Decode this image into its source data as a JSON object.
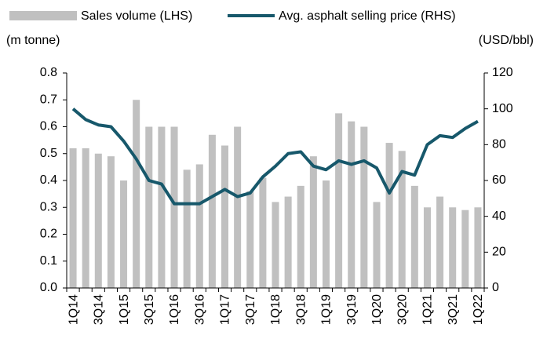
{
  "chart_data": {
    "type": "combo",
    "categories": [
      "1Q14",
      null,
      "3Q14",
      null,
      "1Q15",
      null,
      "3Q15",
      null,
      "1Q16",
      null,
      "3Q16",
      null,
      "1Q17",
      null,
      "3Q17",
      null,
      "1Q18",
      null,
      "3Q18",
      null,
      "1Q19",
      null,
      "3Q19",
      null,
      "1Q20",
      null,
      "3Q20",
      null,
      "1Q21",
      null,
      "3Q21",
      null,
      "1Q22"
    ],
    "series": [
      {
        "name": "Sales volume (LHS)",
        "type": "bar",
        "color": "#c0c0c0",
        "values": [
          0.52,
          0.52,
          0.5,
          0.49,
          0.4,
          0.7,
          0.6,
          0.6,
          0.6,
          0.44,
          0.46,
          0.57,
          0.53,
          0.6,
          0.36,
          0.41,
          0.32,
          0.34,
          0.38,
          0.49,
          0.4,
          0.65,
          0.62,
          0.6,
          0.32,
          0.54,
          0.51,
          0.38,
          0.3,
          0.34,
          0.3,
          0.29,
          0.3
        ]
      },
      {
        "name": "Avg. asphalt selling price (RHS)",
        "type": "line",
        "axis": "y2",
        "color": "#17586b",
        "values": [
          100,
          94,
          91,
          90,
          82,
          72,
          60,
          58,
          47,
          47,
          47,
          51,
          55,
          51,
          53,
          62,
          68,
          75,
          76,
          68,
          66,
          71,
          69,
          71,
          67,
          53,
          65,
          63,
          80,
          85,
          84,
          89,
          93
        ]
      }
    ],
    "ylabel": "(m tonne)",
    "y2label": "(USD/bbl)",
    "ylim": [
      0,
      0.8
    ],
    "yticks": [
      {
        "value": 0,
        "label": "0.0"
      },
      0.1,
      0.2,
      0.3,
      0.4,
      0.5,
      0.6,
      0.7,
      0.8
    ],
    "y2lim": [
      0,
      120
    ],
    "y2ticks": [
      0,
      20,
      40,
      60,
      80,
      100,
      120
    ],
    "grid": false
  }
}
